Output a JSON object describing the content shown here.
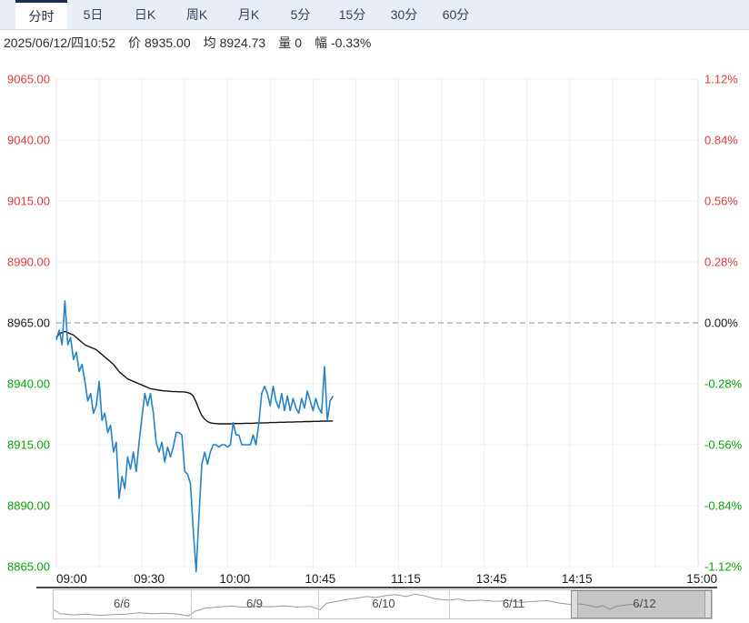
{
  "tabs": {
    "items": [
      {
        "key": "fenshi",
        "label": "分时",
        "selected": true
      },
      {
        "key": "5d",
        "label": "5日",
        "selected": false
      },
      {
        "key": "day-k",
        "label": "日K",
        "selected": false
      },
      {
        "key": "week-k",
        "label": "周K",
        "selected": false
      },
      {
        "key": "month-k",
        "label": "月K",
        "selected": false
      },
      {
        "key": "5min",
        "label": "5分",
        "selected": false
      },
      {
        "key": "15min",
        "label": "15分",
        "selected": false
      },
      {
        "key": "30min",
        "label": "30分",
        "selected": false
      },
      {
        "key": "60min",
        "label": "60分",
        "selected": false
      }
    ]
  },
  "info": {
    "datetime": "2025/06/12/四10:52",
    "price_label": "价",
    "price": "8935.00",
    "avg_label": "均",
    "avg": "8924.73",
    "vol_label": "量",
    "vol": "0",
    "chg_label": "幅",
    "chg": "-0.33%"
  },
  "colors": {
    "up": "#e03b3b",
    "down": "#0aa30a",
    "neutral": "#1a1a1a",
    "price_line": "#2583c8",
    "avg_line": "#141414",
    "grid": "#ededed",
    "zero_dash": "#8c8c8c",
    "axis_dark_line": "#484848",
    "tabbar_bg": "#e9edf6",
    "tab_selected_border": "#1f2d52",
    "nav_spark": "#9a9a9a",
    "nav_selected_fill": "#b0b0b0"
  },
  "chart_data": {
    "type": "line",
    "title": "分时 (intraday) price / average",
    "prev_close": 8965,
    "session_total_minutes": 225,
    "current_minute": 97,
    "ylim": [
      8865,
      9065
    ],
    "grid": "on",
    "minor_grid_minutes_step": 15,
    "y_ticks": [
      {
        "price_label": "9065.00",
        "price": 9065,
        "pct_label": "1.12%"
      },
      {
        "price_label": "9040.00",
        "price": 9040,
        "pct_label": "0.84%"
      },
      {
        "price_label": "9015.00",
        "price": 9015,
        "pct_label": "0.56%"
      },
      {
        "price_label": "8990.00",
        "price": 8990,
        "pct_label": "0.28%"
      },
      {
        "price_label": "8965.00",
        "price": 8965,
        "pct_label": "0.00%"
      },
      {
        "price_label": "8940.00",
        "price": 8940,
        "pct_label": "-0.28%"
      },
      {
        "price_label": "8915.00",
        "price": 8915,
        "pct_label": "-0.56%"
      },
      {
        "price_label": "8890.00",
        "price": 8890,
        "pct_label": "-0.84%"
      },
      {
        "price_label": "8865.00",
        "price": 8865,
        "pct_label": "-1.12%"
      }
    ],
    "x_ticks": [
      {
        "label": "09:00",
        "minute": 0
      },
      {
        "label": "09:30",
        "minute": 30
      },
      {
        "label": "10:00",
        "minute": 60
      },
      {
        "label": "10:45",
        "minute": 90
      },
      {
        "label": "11:15",
        "minute": 120
      },
      {
        "label": "13:45",
        "minute": 150
      },
      {
        "label": "14:15",
        "minute": 180
      },
      {
        "label": "15:00",
        "minute": 225
      }
    ],
    "series": [
      {
        "name": "price",
        "color": "#2583c8",
        "values": [
          8958,
          8962,
          8956,
          8974,
          8956,
          8959,
          8950,
          8953,
          8945,
          8948,
          8941,
          8933,
          8936,
          8928,
          8931,
          8941,
          8925,
          8928,
          8920,
          8923,
          8912,
          8916,
          8893,
          8902,
          8897,
          8910,
          8905,
          8912,
          8904,
          8916,
          8926,
          8936,
          8931,
          8936,
          8928,
          8916,
          8912,
          8916,
          8908,
          8914,
          8910,
          8914,
          8920,
          8920,
          8919,
          8904,
          8903,
          8899,
          8880,
          8863,
          8886,
          8907,
          8912,
          8907,
          8912,
          8915,
          8915,
          8914,
          8915,
          8915,
          8914,
          8915,
          8924,
          8919,
          8919,
          8915,
          8915,
          8915,
          8915,
          8919,
          8915,
          8924,
          8936,
          8939,
          8936,
          8931,
          8939,
          8933,
          8930,
          8936,
          8929,
          8935,
          8929,
          8934,
          8930,
          8928,
          8934,
          8930,
          8937,
          8933,
          8929,
          8934,
          8930,
          8928,
          8947,
          8925,
          8933,
          8935
        ]
      },
      {
        "name": "average",
        "color": "#141414",
        "values": [
          8959,
          8960.5,
          8961,
          8961.5,
          8961,
          8960.5,
          8960,
          8959,
          8958,
          8957,
          8956,
          8955.5,
          8955,
          8954.5,
          8954,
          8953,
          8952,
          8951,
          8950,
          8949,
          8948,
          8946.5,
          8945,
          8944,
          8943,
          8942,
          8941.5,
          8941,
          8940.5,
          8940,
          8939.5,
          8939,
          8938.5,
          8938,
          8937.8,
          8937.6,
          8937.4,
          8937.2,
          8937.1,
          8937,
          8936.9,
          8936.8,
          8936.8,
          8936.7,
          8936.7,
          8936.6,
          8936.4,
          8936,
          8935,
          8932.5,
          8929.5,
          8927,
          8925.5,
          8924.5,
          8924,
          8923.8,
          8923.7,
          8923.6,
          8923.6,
          8923.6,
          8923.6,
          8923.6,
          8923.7,
          8923.7,
          8923.7,
          8923.7,
          8923.8,
          8923.8,
          8923.8,
          8923.8,
          8923.9,
          8923.9,
          8923.9,
          8924,
          8924,
          8924.1,
          8924.1,
          8924.1,
          8924.2,
          8924.2,
          8924.2,
          8924.3,
          8924.3,
          8924.3,
          8924.4,
          8924.4,
          8924.4,
          8924.5,
          8924.5,
          8924.5,
          8924.6,
          8924.6,
          8924.6,
          8924.7,
          8924.7,
          8924.7,
          8924.73,
          8924.73
        ]
      }
    ]
  },
  "navigator": {
    "sections": [
      {
        "label": "6/6",
        "start": 0.0,
        "end": 0.208
      },
      {
        "label": "6/9",
        "start": 0.208,
        "end": 0.402
      },
      {
        "label": "6/10",
        "start": 0.402,
        "end": 0.601
      },
      {
        "label": "6/11",
        "start": 0.601,
        "end": 0.796
      },
      {
        "label": "6/12",
        "start": 0.796,
        "end": 1.0
      }
    ],
    "selected_section": "6/12",
    "selection": {
      "start": 0.786,
      "end": 1.0
    },
    "sparkline": [
      [
        0,
        0.72
      ],
      [
        0.01,
        0.88
      ],
      [
        0.03,
        0.93
      ],
      [
        0.05,
        0.9
      ],
      [
        0.07,
        0.95
      ],
      [
        0.09,
        0.92
      ],
      [
        0.11,
        0.9
      ],
      [
        0.13,
        0.84
      ],
      [
        0.15,
        0.88
      ],
      [
        0.17,
        0.86
      ],
      [
        0.19,
        0.9
      ],
      [
        0.205,
        0.97
      ],
      [
        0.215,
        0.78
      ],
      [
        0.23,
        0.66
      ],
      [
        0.25,
        0.61
      ],
      [
        0.27,
        0.57
      ],
      [
        0.29,
        0.62
      ],
      [
        0.31,
        0.58
      ],
      [
        0.33,
        0.6
      ],
      [
        0.35,
        0.56
      ],
      [
        0.37,
        0.61
      ],
      [
        0.39,
        0.58
      ],
      [
        0.405,
        0.72
      ],
      [
        0.415,
        0.45
      ],
      [
        0.43,
        0.38
      ],
      [
        0.445,
        0.3
      ],
      [
        0.46,
        0.25
      ],
      [
        0.475,
        0.18
      ],
      [
        0.49,
        0.22
      ],
      [
        0.505,
        0.14
      ],
      [
        0.52,
        0.1
      ],
      [
        0.535,
        0.18
      ],
      [
        0.55,
        0.08
      ],
      [
        0.565,
        0.16
      ],
      [
        0.58,
        0.28
      ],
      [
        0.6,
        0.33
      ],
      [
        0.615,
        0.28
      ],
      [
        0.63,
        0.36
      ],
      [
        0.65,
        0.33
      ],
      [
        0.67,
        0.38
      ],
      [
        0.69,
        0.35
      ],
      [
        0.71,
        0.42
      ],
      [
        0.73,
        0.38
      ],
      [
        0.75,
        0.35
      ],
      [
        0.77,
        0.45
      ],
      [
        0.79,
        0.52
      ],
      [
        0.8,
        0.48
      ],
      [
        0.815,
        0.55
      ],
      [
        0.825,
        0.62
      ],
      [
        0.835,
        0.55
      ],
      [
        0.845,
        0.7
      ],
      [
        0.855,
        0.58
      ],
      [
        0.865,
        0.54
      ],
      [
        0.875,
        0.5
      ],
      [
        0.885,
        0.52
      ],
      [
        0.895,
        0.55
      ]
    ]
  }
}
